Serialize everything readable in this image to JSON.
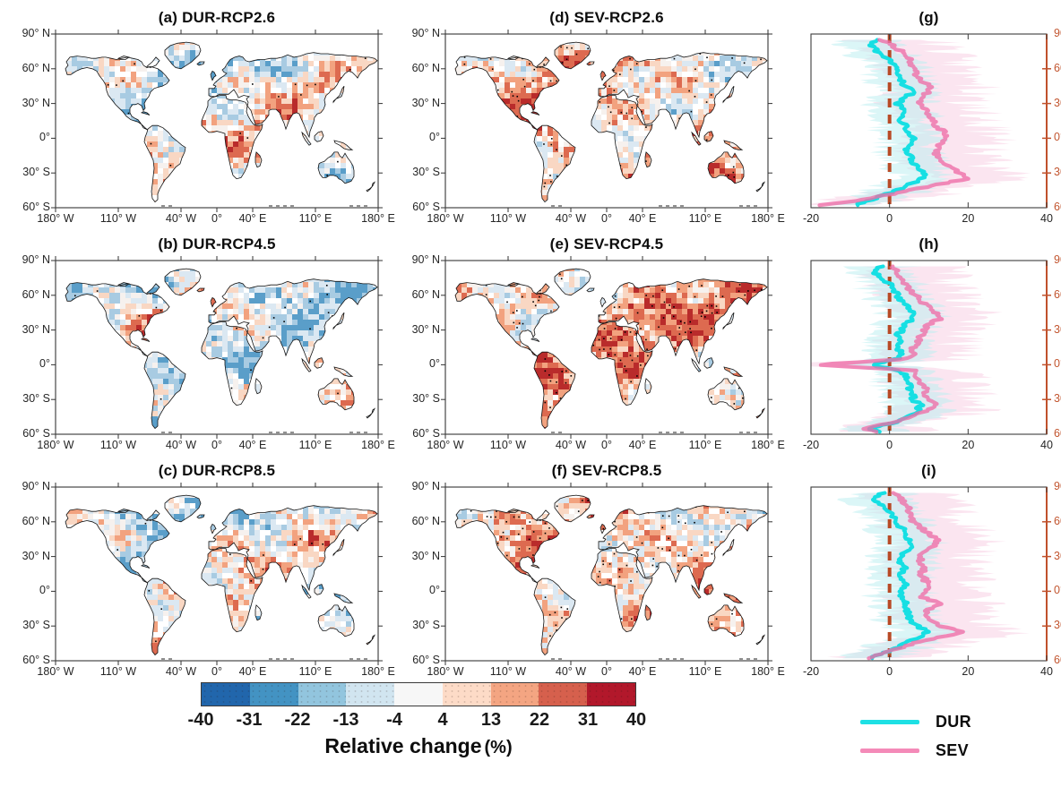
{
  "panels": {
    "maps": [
      {
        "id": "a",
        "tag": "(a)",
        "title": "DUR-RCP2.6",
        "row": 0,
        "col": 0,
        "intensity": "dur"
      },
      {
        "id": "b",
        "tag": "(b)",
        "title": "DUR-RCP4.5",
        "row": 1,
        "col": 0,
        "intensity": "dur"
      },
      {
        "id": "c",
        "tag": "(c)",
        "title": "DUR-RCP8.5",
        "row": 2,
        "col": 0,
        "intensity": "dur"
      },
      {
        "id": "d",
        "tag": "(d)",
        "title": "SEV-RCP2.6",
        "row": 0,
        "col": 1,
        "intensity": "sev"
      },
      {
        "id": "e",
        "tag": "(e)",
        "title": "SEV-RCP4.5",
        "row": 1,
        "col": 1,
        "intensity": "sev"
      },
      {
        "id": "f",
        "tag": "(f)",
        "title": "SEV-RCP8.5",
        "row": 2,
        "col": 1,
        "intensity": "sev"
      }
    ],
    "zonal": [
      {
        "id": "g",
        "tag": "(g)",
        "row": 0,
        "x_tick_labels": [
          "-20",
          "0",
          "20",
          "40"
        ]
      },
      {
        "id": "h",
        "tag": "(h)",
        "row": 1,
        "x_tick_labels": [
          "-20",
          "0",
          "20",
          "40"
        ]
      },
      {
        "id": "i",
        "tag": "(i)",
        "row": 2,
        "x_tick_labels": [
          "-20",
          "0",
          "20",
          "40"
        ]
      }
    ]
  },
  "map_axes": {
    "x_tick_labels": [
      "180° W",
      "110° W",
      "40° W",
      "0°",
      "40° E",
      "110° E",
      "180° E"
    ],
    "x_lons": [
      -180,
      -110,
      -40,
      0,
      40,
      110,
      180
    ],
    "y_tick_labels": [
      "90° N",
      "60° N",
      "30° N",
      "0°",
      "30° S",
      "60° S"
    ],
    "y_lats": [
      90,
      60,
      30,
      0,
      -30,
      -60
    ]
  },
  "zonal_axes": {
    "x_values": [
      -20,
      0,
      20,
      40
    ],
    "xlim": [
      -20,
      40
    ],
    "right_tick_labels": [
      "90° N",
      "60° N",
      "30° N",
      "0°",
      "30° S",
      "60° S"
    ],
    "right_lats": [
      90,
      60,
      30,
      0,
      -30,
      -60
    ],
    "zero_line_value": 0
  },
  "colorbar": {
    "tick_labels": [
      "-40",
      "-31",
      "-22",
      "-13",
      "-4",
      "4",
      "13",
      "22",
      "31",
      "40"
    ],
    "values": [
      -40,
      -31,
      -22,
      -13,
      -4,
      4,
      13,
      22,
      31,
      40
    ],
    "colors": [
      "#2166ac",
      "#4393c3",
      "#92c5de",
      "#d1e5f0",
      "#f7f7f7",
      "#fddbc7",
      "#f4a582",
      "#d6604d",
      "#b2182b"
    ],
    "caption": "Relative change",
    "caption_suffix": "(%)"
  },
  "legend": {
    "items": [
      {
        "label": "DUR",
        "color": "#1ee0e4"
      },
      {
        "label": "SEV",
        "color": "#f48ab8"
      }
    ]
  },
  "styles": {
    "axis_orange": "#c2552f",
    "right_spine": "#c0512c",
    "zero_line_color": "#b84a26",
    "land_outline": "#141414",
    "frame": "#474747",
    "band_dur": "#bdeef0",
    "band_sev": "#f8cfe3",
    "line_dur": "#16dfe3",
    "line_sev": "#ee6da6",
    "stipple": "#000000"
  },
  "chart_data": [
    {
      "type": "line",
      "id": "g",
      "panel_label": "(g)",
      "xlabel": "Relative change (%)",
      "xlim": [
        -20,
        40
      ],
      "y_axis": "latitude (90° N to 60° S)",
      "zero_line": 0,
      "band_meaning": "inter-model spread (light cyan = DUR, light pink = SEV)",
      "lat": [
        85,
        80,
        75,
        70,
        65,
        60,
        55,
        50,
        45,
        40,
        35,
        30,
        25,
        20,
        15,
        10,
        5,
        0,
        -5,
        -10,
        -15,
        -20,
        -25,
        -30,
        -35,
        -40,
        -45,
        -50,
        -55,
        -58
      ],
      "series": [
        {
          "name": "DUR",
          "values": [
            -4,
            -5,
            -3,
            -1,
            1,
            2,
            2,
            3,
            4,
            6,
            4,
            2,
            3,
            4,
            3,
            4,
            5,
            6,
            5,
            4,
            5,
            6,
            7,
            9,
            8,
            5,
            2,
            -2,
            -6,
            -9
          ]
        },
        {
          "name": "SEV",
          "values": [
            -2,
            1,
            3,
            5,
            5,
            6,
            7,
            8,
            10,
            10,
            8,
            7,
            9,
            10,
            11,
            12,
            14,
            14,
            13,
            12,
            12,
            13,
            15,
            18,
            20,
            12,
            5,
            -2,
            -10,
            -19
          ]
        }
      ]
    },
    {
      "type": "line",
      "id": "h",
      "panel_label": "(h)",
      "xlabel": "Relative change (%)",
      "xlim": [
        -20,
        40
      ],
      "y_axis": "latitude (90° N to 60° S)",
      "zero_line": 0,
      "band_meaning": "inter-model spread (light cyan = DUR, light pink = SEV)",
      "lat": [
        85,
        80,
        75,
        70,
        65,
        60,
        55,
        50,
        45,
        40,
        35,
        30,
        25,
        20,
        15,
        10,
        5,
        0,
        -5,
        -10,
        -15,
        -20,
        -25,
        -30,
        -35,
        -40,
        -45,
        -50,
        -55,
        -58
      ],
      "series": [
        {
          "name": "DUR",
          "values": [
            -2,
            -4,
            -2,
            0,
            1,
            2,
            3,
            5,
            6,
            6,
            4,
            3,
            2,
            3,
            2,
            3,
            2,
            -5,
            3,
            4,
            5,
            5,
            6,
            6,
            8,
            7,
            4,
            1,
            -5,
            -2
          ]
        },
        {
          "name": "SEV",
          "values": [
            1,
            2,
            3,
            4,
            5,
            7,
            8,
            10,
            12,
            13,
            10,
            9,
            8,
            7,
            6,
            6,
            5,
            -19,
            7,
            7,
            8,
            9,
            9,
            10,
            12,
            9,
            5,
            1,
            -7,
            -3
          ]
        }
      ]
    },
    {
      "type": "line",
      "id": "i",
      "panel_label": "(i)",
      "xlabel": "Relative change (%)",
      "xlim": [
        -20,
        40
      ],
      "y_axis": "latitude (90° N to 60° S)",
      "zero_line": 0,
      "band_meaning": "inter-model spread (light cyan = DUR, light pink = SEV)",
      "lat": [
        85,
        80,
        75,
        70,
        65,
        60,
        55,
        50,
        45,
        40,
        35,
        30,
        25,
        20,
        15,
        10,
        5,
        0,
        -5,
        -10,
        -15,
        -20,
        -25,
        -30,
        -35,
        -40,
        -45,
        -50,
        -55,
        -58
      ],
      "series": [
        {
          "name": "DUR",
          "values": [
            -2,
            -4,
            -2,
            0,
            1,
            2,
            3,
            4,
            5,
            6,
            4,
            3,
            3,
            4,
            3,
            3,
            4,
            3,
            3,
            4,
            4,
            5,
            5,
            7,
            10,
            7,
            4,
            1,
            -3,
            -5
          ]
        },
        {
          "name": "SEV",
          "values": [
            1,
            3,
            4,
            5,
            5,
            6,
            8,
            10,
            12,
            12,
            9,
            8,
            8,
            9,
            8,
            9,
            10,
            9,
            8,
            13,
            10,
            9,
            10,
            13,
            19,
            12,
            6,
            2,
            -3,
            -5
          ]
        }
      ]
    },
    {
      "type": "heatmap",
      "id": "a",
      "title": "(a) DUR-RCP2.6",
      "units": "%",
      "value_breaks": [
        -40,
        -31,
        -22,
        -13,
        -4,
        4,
        13,
        22,
        31,
        40
      ],
      "extent": {
        "lon": [
          -180,
          180
        ],
        "lat": [
          -60,
          90
        ]
      },
      "pattern": "mostly weak ±4–13% changes; light blue over Arctic/Greenland, light red over tropics; sparse stippling"
    },
    {
      "type": "heatmap",
      "id": "b",
      "title": "(b) DUR-RCP4.5",
      "units": "%",
      "value_breaks": [
        -40,
        -31,
        -22,
        -13,
        -4,
        4,
        13,
        22,
        31,
        40
      ],
      "extent": {
        "lon": [
          -180,
          180
        ],
        "lat": [
          -60,
          90
        ]
      },
      "pattern": "weak scattered changes; blue patch over Arctic islands, red over Iberia and subtropics"
    },
    {
      "type": "heatmap",
      "id": "c",
      "title": "(c) DUR-RCP8.5",
      "units": "%",
      "value_breaks": [
        -40,
        -31,
        -22,
        -13,
        -4,
        4,
        13,
        22,
        31,
        40
      ],
      "extent": {
        "lon": [
          -180,
          180
        ],
        "lat": [
          -60,
          90
        ]
      },
      "pattern": "weak changes; blue high latitudes, light red mid-latitudes and S. America"
    },
    {
      "type": "heatmap",
      "id": "d",
      "title": "(d) SEV-RCP2.6",
      "units": "%",
      "value_breaks": [
        -40,
        -31,
        -22,
        -13,
        -4,
        4,
        13,
        22,
        31,
        40
      ],
      "extent": {
        "lon": [
          -180,
          180
        ],
        "lat": [
          -60,
          90
        ]
      },
      "pattern": "widespread 13–40% increases over S. Europe, Africa, S. Asia, Amazon; dense stippling"
    },
    {
      "type": "heatmap",
      "id": "e",
      "title": "(e) SEV-RCP4.5",
      "units": "%",
      "value_breaks": [
        -40,
        -31,
        -22,
        -13,
        -4,
        4,
        13,
        22,
        31,
        40
      ],
      "extent": {
        "lon": [
          -180,
          180
        ],
        "lat": [
          -60,
          90
        ]
      },
      "pattern": "strong increases over Mediterranean, Africa, Middle East, Amazon; dense stippling"
    },
    {
      "type": "heatmap",
      "id": "f",
      "title": "(f) SEV-RCP8.5",
      "units": "%",
      "value_breaks": [
        -40,
        -31,
        -22,
        -13,
        -4,
        4,
        13,
        22,
        31,
        40
      ],
      "extent": {
        "lon": [
          -180,
          180
        ],
        "lat": [
          -60,
          90
        ]
      },
      "pattern": "strong increases over Europe, N. Africa, central Asia, S. America; blue over Arctic"
    }
  ]
}
